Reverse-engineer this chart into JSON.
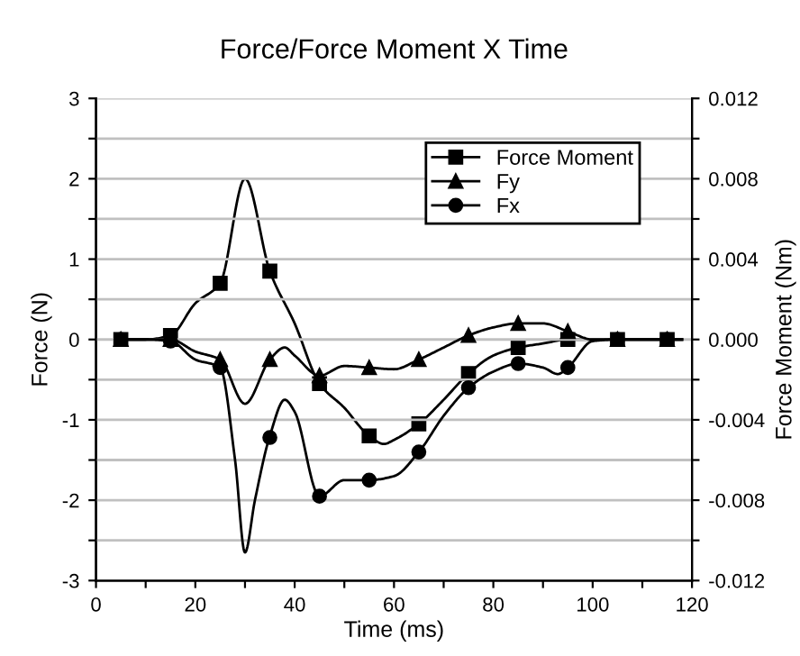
{
  "chart_data": {
    "type": "line",
    "title": "Force/Force Moment X Time",
    "xlabel": "Time (ms)",
    "ylabel": "Force (N)",
    "y2label": "Force Moment (Nm)",
    "xlim": [
      0,
      120
    ],
    "xticks": [
      0,
      {
        "value": 10,
        "label": null
      },
      20,
      {
        "value": 30,
        "label": null
      },
      40,
      {
        "value": 50,
        "label": null
      },
      60,
      {
        "value": 70,
        "label": null
      },
      80,
      {
        "value": 90,
        "label": null
      },
      100,
      {
        "value": 110,
        "label": null
      },
      120
    ],
    "ylim": [
      -3,
      3
    ],
    "yticks": [
      -3,
      {
        "value": -2.5,
        "label": null
      },
      -2,
      {
        "value": -1.5,
        "label": null
      },
      -1,
      {
        "value": -0.5,
        "label": null
      },
      0,
      {
        "value": 0.5,
        "label": null
      },
      1,
      {
        "value": 1.5,
        "label": null
      },
      2,
      {
        "value": 2.5,
        "label": null
      },
      3
    ],
    "y2lim": [
      -0.012,
      0.012
    ],
    "y2ticks": [
      -0.012,
      {
        "value": -0.01,
        "label": null
      },
      -0.008,
      {
        "value": -0.006,
        "label": null
      },
      -0.004,
      {
        "value": -0.002,
        "label": null
      },
      {
        "value": 0,
        "label": "0.000"
      },
      {
        "value": 0.002,
        "label": null
      },
      0.004,
      {
        "value": 0.006,
        "label": null
      },
      0.008,
      {
        "value": 0.01,
        "label": null
      },
      0.012
    ],
    "grid": "y",
    "legend": "top right",
    "line_style": "solid",
    "series": [
      {
        "axis": "y2",
        "color": "#000000",
        "x": [
          5,
          10,
          15,
          20,
          25,
          30,
          35,
          40,
          45,
          50,
          55,
          58,
          60,
          65,
          70,
          75,
          80,
          85,
          90,
          95,
          100,
          105,
          110,
          115,
          118
        ],
        "values": [
          0,
          0,
          0.0002,
          0.0018,
          0.0028,
          0.008,
          0.0034,
          0.0008,
          -0.0022,
          -0.0034,
          -0.0048,
          -0.0052,
          -0.005,
          -0.0042,
          -0.003,
          -0.0017,
          -0.0008,
          -0.0004,
          -0.0002,
          0,
          0,
          0,
          0,
          0,
          0
        ]
      },
      {
        "type": "scatter",
        "axis": "y2",
        "name": "Force Moment",
        "color": "#000000",
        "marker": "square",
        "x": [
          5,
          15,
          25,
          35,
          45,
          55,
          65,
          75,
          85,
          95,
          105,
          115
        ],
        "values": [
          0,
          0.0002,
          0.0028,
          0.0034,
          -0.0022,
          -0.0048,
          -0.0042,
          -0.0017,
          -0.0004,
          0,
          0,
          0
        ]
      },
      {
        "color": "#000000",
        "x": [
          5,
          10,
          15,
          20,
          25,
          30,
          35,
          38,
          40,
          45,
          50,
          55,
          60,
          65,
          70,
          75,
          80,
          85,
          90,
          95,
          100,
          105,
          110,
          115,
          118
        ],
        "values": [
          0,
          0,
          0,
          -0.15,
          -0.25,
          -0.8,
          -0.25,
          -0.1,
          -0.2,
          -0.45,
          -0.33,
          -0.35,
          -0.37,
          -0.25,
          -0.1,
          0.05,
          0.15,
          0.2,
          0.2,
          0.1,
          0,
          0,
          0,
          0,
          0
        ]
      },
      {
        "type": "scatter",
        "name": "Fy",
        "color": "#000000",
        "marker": "triangle",
        "x": [
          5,
          15,
          25,
          35,
          45,
          55,
          65,
          75,
          85,
          95,
          105,
          115
        ],
        "values": [
          0,
          0,
          -0.25,
          -0.25,
          -0.45,
          -0.35,
          -0.25,
          0.05,
          0.2,
          0.1,
          0,
          0
        ]
      },
      {
        "color": "#000000",
        "x": [
          5,
          10,
          15,
          20,
          25,
          28,
          30,
          32,
          35,
          38,
          40,
          45,
          50,
          55,
          60,
          65,
          70,
          75,
          80,
          85,
          90,
          93,
          95,
          100,
          105,
          110,
          115,
          118
        ],
        "values": [
          0,
          0,
          -0.02,
          -0.25,
          -0.35,
          -1.5,
          -2.65,
          -2.0,
          -1.2,
          -0.75,
          -0.9,
          -1.95,
          -1.75,
          -1.75,
          -1.7,
          -1.4,
          -0.95,
          -0.6,
          -0.4,
          -0.3,
          -0.35,
          -0.43,
          -0.35,
          -0.02,
          0,
          0,
          0,
          0
        ]
      },
      {
        "type": "scatter",
        "name": "Fx",
        "color": "#000000",
        "marker": "circle",
        "x": [
          5,
          15,
          25,
          35,
          45,
          55,
          65,
          75,
          85,
          95,
          105,
          115
        ],
        "values": [
          0,
          -0.02,
          -0.35,
          -1.22,
          -1.95,
          -1.75,
          -1.4,
          -0.6,
          -0.3,
          -0.35,
          0,
          0
        ]
      }
    ]
  }
}
